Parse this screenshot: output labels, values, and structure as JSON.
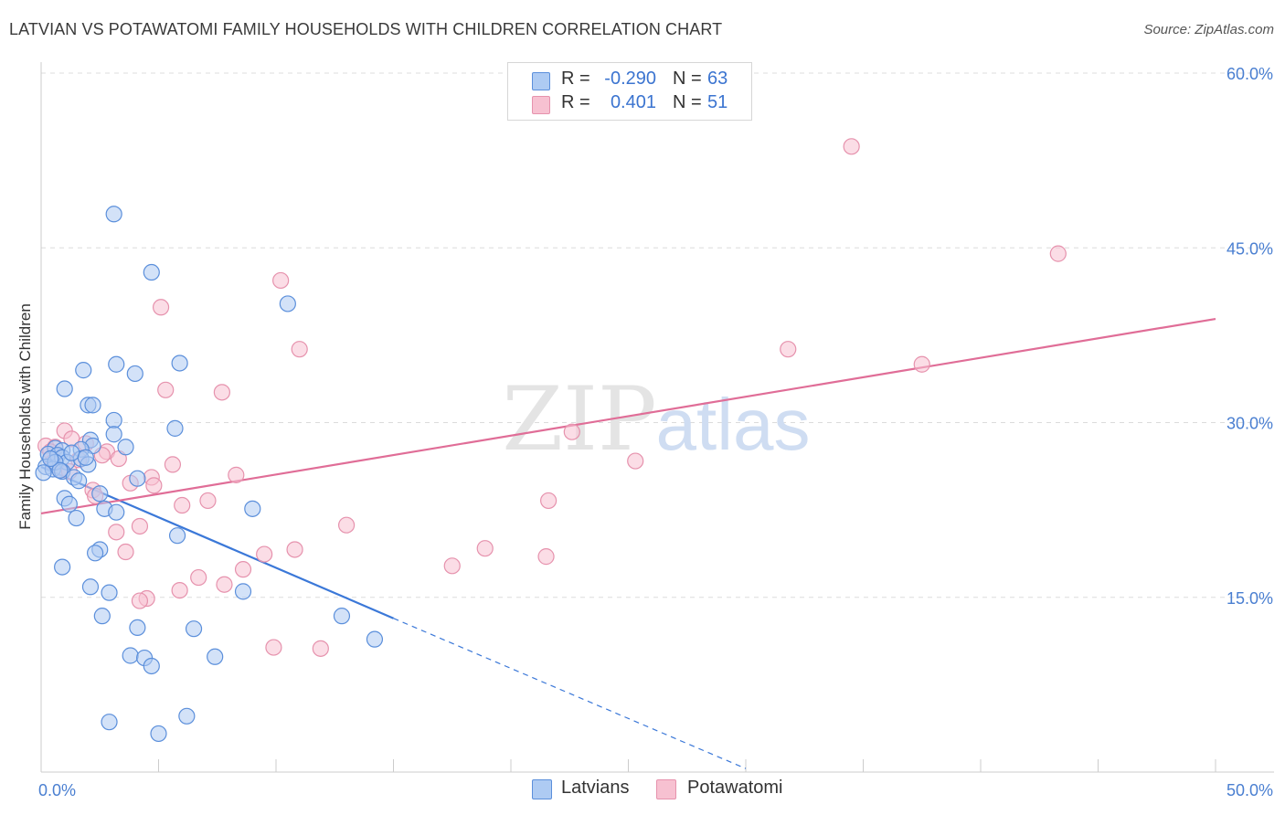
{
  "title": "LATVIAN VS POTAWATOMI FAMILY HOUSEHOLDS WITH CHILDREN CORRELATION CHART",
  "source": "Source: ZipAtlas.com",
  "watermark": {
    "zip": "ZIP",
    "atlas": "atlas"
  },
  "legend": {
    "latvians": {
      "r_label": "R =",
      "r_value": "-0.290",
      "n_label": "N =",
      "n_value": "63"
    },
    "potawatomi": {
      "r_label": "R =",
      "r_value": "0.401",
      "n_label": "N =",
      "n_value": "51"
    }
  },
  "colors": {
    "latvian_fill": "#aecbf3",
    "latvian_stroke": "#5b8fdb",
    "latvian_line": "#3b78d8",
    "potawatomi_fill": "#f7c1d1",
    "potawatomi_stroke": "#e692ad",
    "potawatomi_line": "#e06d97",
    "grid": "#dcdcdc",
    "axis_text": "#4a7fd1"
  },
  "chart_data": {
    "type": "scatter",
    "title": "LATVIAN VS POTAWATOMI FAMILY HOUSEHOLDS WITH CHILDREN CORRELATION CHART",
    "xlabel": "",
    "ylabel": "Family Households with Children",
    "xlim": [
      0,
      50
    ],
    "ylim": [
      0,
      60
    ],
    "x_tick_labels": [
      {
        "value": 0,
        "label": "0.0%"
      },
      {
        "value": 50,
        "label": "50.0%"
      }
    ],
    "y_tick_labels": [
      {
        "value": 15,
        "label": "15.0%"
      },
      {
        "value": 30,
        "label": "30.0%"
      },
      {
        "value": 45,
        "label": "45.0%"
      },
      {
        "value": 60,
        "label": "60.0%"
      }
    ],
    "series": [
      {
        "name": "Latvians",
        "r": -0.29,
        "n": 63,
        "points": [
          [
            3.1,
            47.9
          ],
          [
            4.7,
            42.9
          ],
          [
            10.5,
            40.2
          ],
          [
            1.8,
            34.5
          ],
          [
            3.2,
            35.0
          ],
          [
            4.0,
            34.2
          ],
          [
            5.9,
            35.1
          ],
          [
            1.0,
            32.9
          ],
          [
            2.0,
            31.5
          ],
          [
            2.2,
            31.5
          ],
          [
            3.1,
            30.2
          ],
          [
            3.1,
            29.0
          ],
          [
            5.7,
            29.5
          ],
          [
            2.1,
            28.5
          ],
          [
            2.2,
            28.0
          ],
          [
            3.6,
            27.9
          ],
          [
            0.6,
            27.8
          ],
          [
            0.9,
            27.6
          ],
          [
            1.7,
            27.7
          ],
          [
            0.3,
            27.3
          ],
          [
            0.7,
            27.2
          ],
          [
            0.9,
            27.0
          ],
          [
            1.1,
            26.6
          ],
          [
            1.7,
            26.9
          ],
          [
            2.0,
            26.4
          ],
          [
            0.2,
            26.2
          ],
          [
            0.5,
            26.0
          ],
          [
            0.6,
            26.6
          ],
          [
            0.1,
            25.7
          ],
          [
            0.9,
            25.8
          ],
          [
            1.4,
            25.3
          ],
          [
            1.6,
            25.0
          ],
          [
            2.5,
            23.9
          ],
          [
            4.1,
            25.2
          ],
          [
            1.0,
            23.5
          ],
          [
            1.2,
            23.0
          ],
          [
            2.7,
            22.6
          ],
          [
            3.2,
            22.3
          ],
          [
            9.0,
            22.6
          ],
          [
            1.5,
            21.8
          ],
          [
            5.8,
            20.3
          ],
          [
            2.5,
            19.1
          ],
          [
            2.3,
            18.8
          ],
          [
            0.9,
            17.6
          ],
          [
            2.1,
            15.9
          ],
          [
            2.9,
            15.4
          ],
          [
            8.6,
            15.5
          ],
          [
            2.6,
            13.4
          ],
          [
            4.1,
            12.4
          ],
          [
            6.5,
            12.3
          ],
          [
            12.8,
            13.4
          ],
          [
            14.2,
            11.4
          ],
          [
            3.8,
            10.0
          ],
          [
            4.4,
            9.8
          ],
          [
            4.7,
            9.1
          ],
          [
            7.4,
            9.9
          ],
          [
            2.9,
            4.3
          ],
          [
            6.2,
            4.8
          ],
          [
            5.0,
            3.3
          ],
          [
            0.8,
            25.9
          ],
          [
            1.3,
            27.4
          ],
          [
            0.4,
            26.9
          ],
          [
            1.9,
            27.0
          ]
        ],
        "trend": {
          "x_start": 0,
          "y_start": 26.2,
          "x_solid_end": 15,
          "y_solid_end": 13.2,
          "x_dash_end": 30,
          "y_dash_end": 0.3
        }
      },
      {
        "name": "Potawatomi",
        "r": 0.401,
        "n": 51,
        "points": [
          [
            34.5,
            53.7
          ],
          [
            43.3,
            44.5
          ],
          [
            10.2,
            42.2
          ],
          [
            5.1,
            39.9
          ],
          [
            11.0,
            36.3
          ],
          [
            31.8,
            36.3
          ],
          [
            37.5,
            35.0
          ],
          [
            5.3,
            32.8
          ],
          [
            7.7,
            32.6
          ],
          [
            1.0,
            29.3
          ],
          [
            22.6,
            29.2
          ],
          [
            1.3,
            28.6
          ],
          [
            0.2,
            28.0
          ],
          [
            0.6,
            27.9
          ],
          [
            0.4,
            27.5
          ],
          [
            2.8,
            27.5
          ],
          [
            2.6,
            27.2
          ],
          [
            3.3,
            26.9
          ],
          [
            1.6,
            26.8
          ],
          [
            5.6,
            26.4
          ],
          [
            25.3,
            26.7
          ],
          [
            0.8,
            25.9
          ],
          [
            1.2,
            25.8
          ],
          [
            4.7,
            25.3
          ],
          [
            8.3,
            25.5
          ],
          [
            3.8,
            24.8
          ],
          [
            2.2,
            24.2
          ],
          [
            4.8,
            24.6
          ],
          [
            2.3,
            23.7
          ],
          [
            7.1,
            23.3
          ],
          [
            21.6,
            23.3
          ],
          [
            6.0,
            22.9
          ],
          [
            4.2,
            21.1
          ],
          [
            13.0,
            21.2
          ],
          [
            3.2,
            20.6
          ],
          [
            10.8,
            19.1
          ],
          [
            18.9,
            19.2
          ],
          [
            3.6,
            18.9
          ],
          [
            9.5,
            18.7
          ],
          [
            21.5,
            18.5
          ],
          [
            17.5,
            17.7
          ],
          [
            8.6,
            17.4
          ],
          [
            6.7,
            16.7
          ],
          [
            7.8,
            16.1
          ],
          [
            5.9,
            15.6
          ],
          [
            4.5,
            14.9
          ],
          [
            4.2,
            14.7
          ],
          [
            9.9,
            10.7
          ],
          [
            11.9,
            10.6
          ],
          [
            0.5,
            26.6
          ],
          [
            1.9,
            28.2
          ]
        ],
        "trend": {
          "x_start": 0,
          "y_start": 22.2,
          "x_end": 50,
          "y_end": 38.9
        }
      }
    ]
  }
}
